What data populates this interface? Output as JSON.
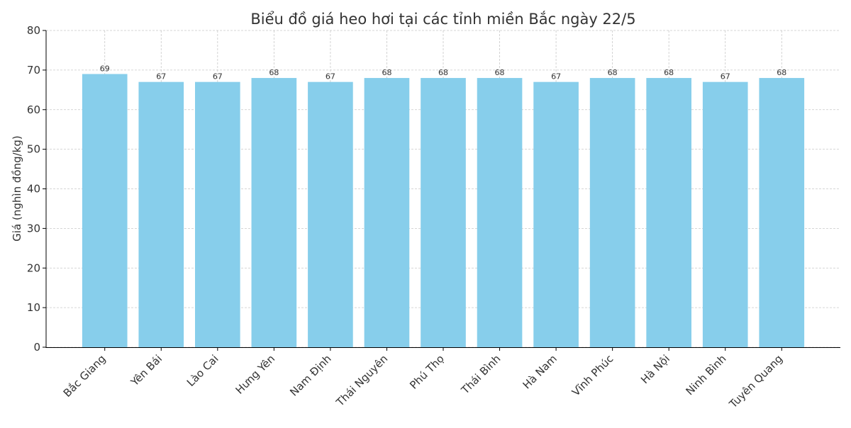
{
  "chart_data": {
    "type": "bar",
    "title": "Biểu đồ giá heo hơi tại các tỉnh miền Bắc ngày 22/5",
    "xlabel": "",
    "ylabel": "Giá (nghìn đồng/kg)",
    "ylim": [
      0,
      80
    ],
    "yticks": [
      0,
      10,
      20,
      30,
      40,
      50,
      60,
      70,
      80
    ],
    "grid": true,
    "bar_color": "#87ceeb",
    "categories": [
      "Bắc Giang",
      "Yên Bái",
      "Lào Cai",
      "Hưng Yên",
      "Nam Định",
      "Thái Nguyên",
      "Phú Thọ",
      "Thái Bình",
      "Hà Nam",
      "Vĩnh Phúc",
      "Hà Nội",
      "Ninh Bình",
      "Tuyên Quang"
    ],
    "values": [
      69,
      67,
      67,
      68,
      67,
      68,
      68,
      68,
      67,
      68,
      68,
      67,
      68
    ]
  }
}
